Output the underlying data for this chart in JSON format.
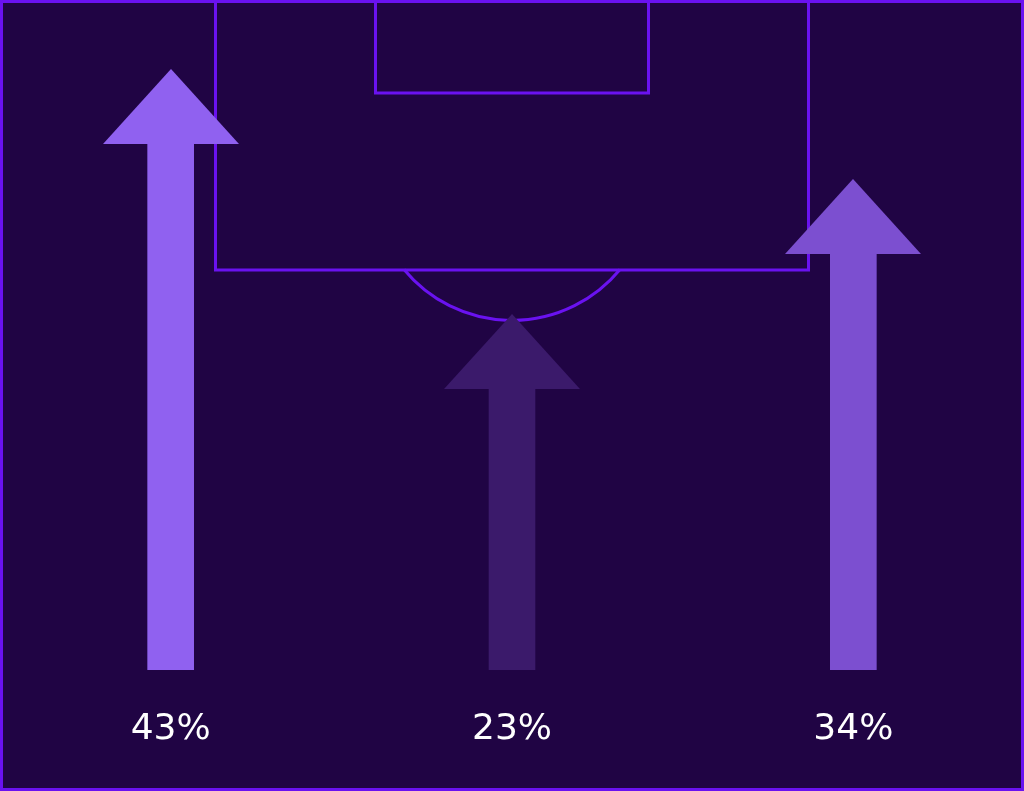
{
  "chart_data": {
    "type": "bar",
    "categories": [
      null,
      null,
      null
    ],
    "values": [
      43,
      23,
      34
    ],
    "colors": [
      "#9061f0",
      "#3b1a6b",
      "#7c4fd0"
    ],
    "value_labels": [
      "43%",
      "23%",
      "34%"
    ],
    "legend": false
  }
}
